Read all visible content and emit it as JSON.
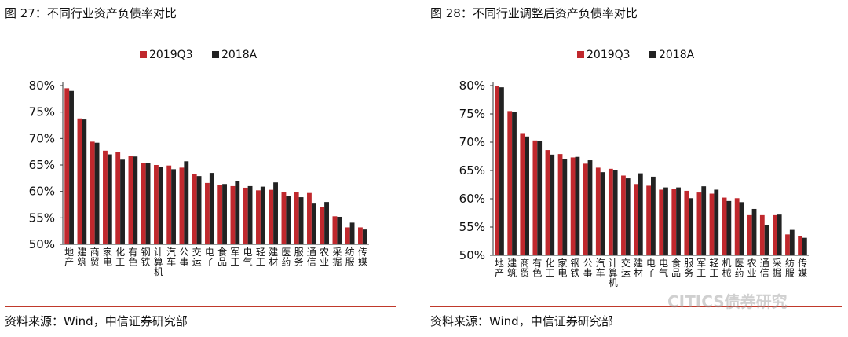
{
  "chart_data": [
    {
      "type": "bar",
      "title": "图 27：不同行业资产负债率对比",
      "source": "资料来源：Wind，中信证券研究部",
      "categories": [
        "地产",
        "建筑",
        "商贸",
        "家电",
        "化工",
        "有色",
        "钢铁",
        "计算机",
        "汽车",
        "公事",
        "交运",
        "电子",
        "食品",
        "军工",
        "电气",
        "轻工",
        "建材",
        "医药",
        "服务",
        "通信",
        "农业",
        "采掘",
        "纺服",
        "传媒"
      ],
      "series": [
        {
          "name": "2019Q3",
          "values": [
            79.5,
            73.8,
            69.4,
            67.7,
            67.4,
            66.7,
            65.3,
            65.0,
            64.9,
            64.5,
            63.3,
            61.6,
            61.2,
            61.0,
            60.7,
            60.2,
            60.3,
            59.8,
            59.8,
            59.7,
            57.0,
            55.3,
            53.2,
            53.2
          ]
        },
        {
          "name": "2018A",
          "values": [
            79.0,
            73.6,
            69.2,
            67.0,
            66.0,
            66.6,
            65.3,
            64.6,
            64.2,
            65.7,
            62.9,
            63.5,
            61.4,
            62.0,
            61.0,
            60.9,
            61.7,
            59.2,
            58.9,
            57.7,
            58.0,
            55.2,
            54.1,
            52.8
          ]
        }
      ],
      "ylim": [
        50,
        80
      ],
      "yticks": [
        "50%",
        "55%",
        "60%",
        "65%",
        "70%",
        "75%",
        "80%"
      ],
      "legend_position": "top-center"
    },
    {
      "type": "bar",
      "title": "图 28：不同行业调整后资产负债率对比",
      "source": "资料来源：Wind，中信证券研究部",
      "categories": [
        "地产",
        "建筑",
        "商贸",
        "有色",
        "化工",
        "家电",
        "钢铁",
        "公事",
        "汽车",
        "计算机",
        "交运",
        "建材",
        "电子",
        "电气",
        "食品",
        "服务",
        "军工",
        "轻工",
        "机械",
        "医药",
        "农业",
        "通信",
        "采掘",
        "纺服",
        "传媒"
      ],
      "series": [
        {
          "name": "2019Q3",
          "values": [
            79.9,
            75.5,
            71.6,
            70.3,
            68.6,
            67.9,
            67.3,
            66.2,
            65.5,
            65.3,
            64.1,
            62.6,
            62.3,
            61.6,
            61.8,
            61.4,
            61.1,
            60.9,
            60.2,
            60.1,
            57.1,
            57.1,
            57.1,
            53.7,
            53.4
          ]
        },
        {
          "name": "2018A",
          "values": [
            79.7,
            75.3,
            71.0,
            70.2,
            67.8,
            67.0,
            67.4,
            66.8,
            64.7,
            65.0,
            63.6,
            64.5,
            63.9,
            62.0,
            62.0,
            60.1,
            62.2,
            61.6,
            59.6,
            59.4,
            58.2,
            55.3,
            57.2,
            54.5,
            53.1
          ]
        }
      ],
      "ylim": [
        50,
        80
      ],
      "yticks": [
        "50%",
        "55%",
        "60%",
        "65%",
        "70%",
        "75%",
        "80%"
      ],
      "legend_position": "top-center"
    }
  ],
  "watermark": "CITICS债券研究",
  "colors": {
    "series_1": "#c0282d",
    "series_2": "#222222",
    "rule": "#c0392b"
  }
}
